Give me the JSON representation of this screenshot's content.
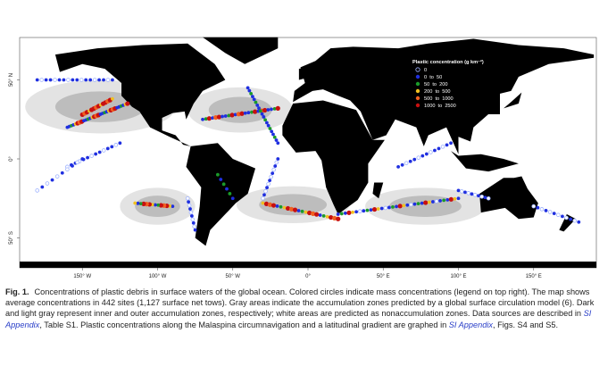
{
  "map": {
    "legend": {
      "title": "Plastic concentration (g km⁻²)",
      "items": [
        {
          "label": "0",
          "color": "#9fb3ff"
        },
        {
          "label": "0  to  50",
          "color": "#1f2fe0"
        },
        {
          "label": "50  to  200",
          "color": "#1a9a2a"
        },
        {
          "label": "200  to  500",
          "color": "#f0c020"
        },
        {
          "label": "500  to  1000",
          "color": "#f06020"
        },
        {
          "label": "1000  to  2500",
          "color": "#c81010"
        }
      ]
    },
    "lat_labels": [
      "50° N",
      "0°",
      "50° S"
    ],
    "lon_labels": [
      "150° W",
      "100° W",
      "50° W",
      "0°",
      "50° E",
      "100° E",
      "150° E"
    ]
  },
  "caption": {
    "label": "Fig. 1.",
    "text1": "Concentrations of plastic debris in surface waters of the global ocean. Colored circles indicate mass concentrations (legend on top right). The map shows average concentrations in 442 sites (1,127 surface net tows). Gray areas indicate the accumulation zones predicted by a global surface circulation model (6). Dark and light gray represent inner and outer accumulation zones, respectively; white areas are predicted as nonaccumulation zones. Data sources are described in ",
    "link1": "SI Appendix",
    "text2": ", Table S1. Plastic concentrations along the Malaspina circumnavigation and a latitudinal gradient are graphed in ",
    "link2": "SI Appendix",
    "text3": ", Figs. S4 and S5."
  }
}
